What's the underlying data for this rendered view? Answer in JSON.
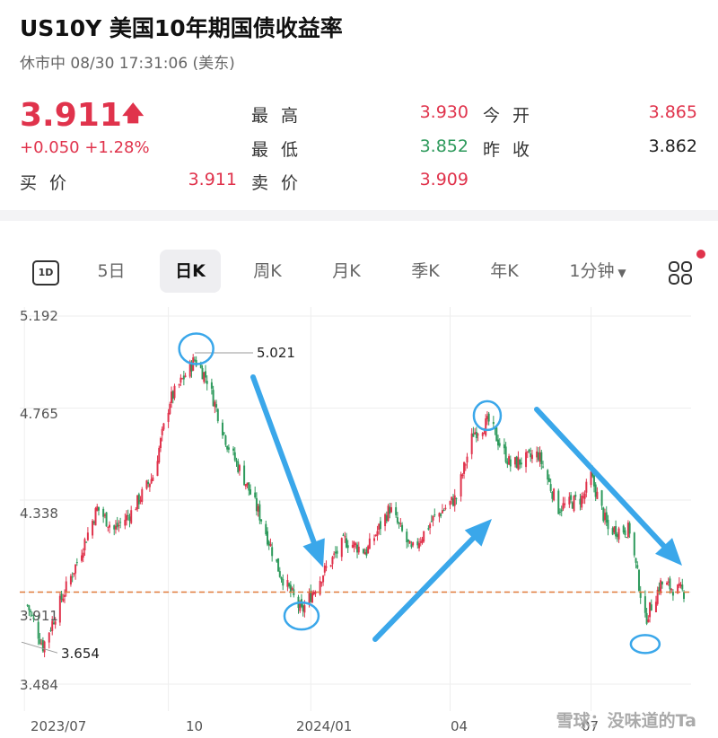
{
  "header": {
    "title": "US10Y   美国10年期国债收益率",
    "status": "休市中 08/30 17:31:06 (美东)",
    "price": "3.911",
    "change": "+0.050 +1.28%"
  },
  "quote": {
    "high_label": "最高",
    "high_value": "3.930",
    "open_label": "今开",
    "open_value": "3.865",
    "low_label": "最低",
    "low_value": "3.852",
    "prev_close_label": "昨收",
    "prev_close_value": "3.862",
    "bid_label": "买价",
    "bid_value": "3.911",
    "ask_label": "卖价",
    "ask_value": "3.909"
  },
  "tabs": {
    "day1": "1D",
    "items": [
      "5日",
      "日K",
      "周K",
      "月K",
      "季K",
      "年K",
      "1分钟"
    ],
    "active": "日K"
  },
  "colors": {
    "up": "#e0334c",
    "down": "#2e9a5c",
    "annotation": "#3aa7ea",
    "ref_line": "#e07a3a"
  },
  "chart_data": {
    "type": "candlestick",
    "y_ticks": [
      "5.192",
      "4.765",
      "4.338",
      "3.911",
      "3.484"
    ],
    "x_ticks": [
      "2023/07",
      "10",
      "2024/01",
      "04",
      "07"
    ],
    "ylim": [
      3.484,
      5.192
    ],
    "current_price": 3.911,
    "annotations": {
      "high": "5.021",
      "low": "3.654"
    },
    "path": [
      {
        "x": "2023-07-03",
        "y": 3.85
      },
      {
        "x": "2023-07-13",
        "y": 3.66
      },
      {
        "x": "2023-07-25",
        "y": 3.88
      },
      {
        "x": "2023-08-04",
        "y": 4.05
      },
      {
        "x": "2023-08-17",
        "y": 4.3
      },
      {
        "x": "2023-08-28",
        "y": 4.2
      },
      {
        "x": "2023-09-08",
        "y": 4.28
      },
      {
        "x": "2023-09-22",
        "y": 4.45
      },
      {
        "x": "2023-10-03",
        "y": 4.8
      },
      {
        "x": "2023-10-19",
        "y": 4.99
      },
      {
        "x": "2023-10-27",
        "y": 4.9
      },
      {
        "x": "2023-11-09",
        "y": 4.6
      },
      {
        "x": "2023-11-21",
        "y": 4.42
      },
      {
        "x": "2023-12-01",
        "y": 4.25
      },
      {
        "x": "2023-12-13",
        "y": 4.0
      },
      {
        "x": "2023-12-27",
        "y": 3.82
      },
      {
        "x": "2024-01-10",
        "y": 4.0
      },
      {
        "x": "2024-01-24",
        "y": 4.15
      },
      {
        "x": "2024-02-07",
        "y": 4.1
      },
      {
        "x": "2024-02-22",
        "y": 4.3
      },
      {
        "x": "2024-03-07",
        "y": 4.1
      },
      {
        "x": "2024-03-21",
        "y": 4.25
      },
      {
        "x": "2024-04-05",
        "y": 4.35
      },
      {
        "x": "2024-04-16",
        "y": 4.65
      },
      {
        "x": "2024-04-26",
        "y": 4.7
      },
      {
        "x": "2024-05-10",
        "y": 4.5
      },
      {
        "x": "2024-05-28",
        "y": 4.55
      },
      {
        "x": "2024-06-10",
        "y": 4.3
      },
      {
        "x": "2024-06-26",
        "y": 4.35
      },
      {
        "x": "2024-07-01",
        "y": 4.45
      },
      {
        "x": "2024-07-12",
        "y": 4.2
      },
      {
        "x": "2024-07-26",
        "y": 4.2
      },
      {
        "x": "2024-08-05",
        "y": 3.78
      },
      {
        "x": "2024-08-15",
        "y": 3.95
      },
      {
        "x": "2024-08-30",
        "y": 3.91
      }
    ]
  },
  "watermark": "雪球：没味道的Ta"
}
